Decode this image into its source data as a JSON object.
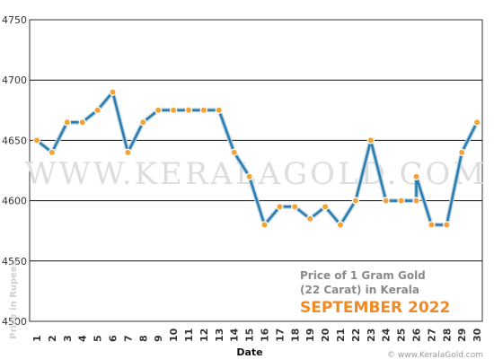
{
  "chart_data": {
    "type": "line",
    "title_line1": "Price of 1 Gram Gold",
    "title_line2": "(22 Carat) in Kerala",
    "month_label": "SEPTEMBER 2022",
    "xlabel": "Date",
    "ylabel": "Price in Rupees",
    "ylim": [
      4500,
      4750
    ],
    "yticks": [
      4500,
      4550,
      4600,
      4650,
      4700,
      4750
    ],
    "grid": true,
    "x": [
      1,
      2,
      3,
      4,
      5,
      6,
      7,
      8,
      9,
      10,
      11,
      12,
      13,
      14,
      15,
      16,
      17,
      18,
      19,
      20,
      21,
      22,
      23,
      24,
      25,
      26,
      27,
      28,
      29,
      30
    ],
    "series": [
      {
        "values": [
          4650,
          4640,
          4665,
          4665,
          4675,
          4690,
          4640,
          4665,
          4675,
          4675,
          4675,
          4675,
          4675,
          4640,
          4620,
          4580,
          4595,
          4595,
          4585,
          4595,
          4580,
          4600,
          4650,
          4600,
          4600,
          4600,
          4580,
          4580,
          4640,
          4665
        ],
        "extra_points": [
          {
            "x": 26,
            "y": 4620
          }
        ],
        "line_color": "#2a7bb0",
        "marker_color": "#f2a33a"
      }
    ],
    "watermark": "WWW.KERALAGOLD.COM",
    "footer": "© www.KeralaGold.com"
  }
}
